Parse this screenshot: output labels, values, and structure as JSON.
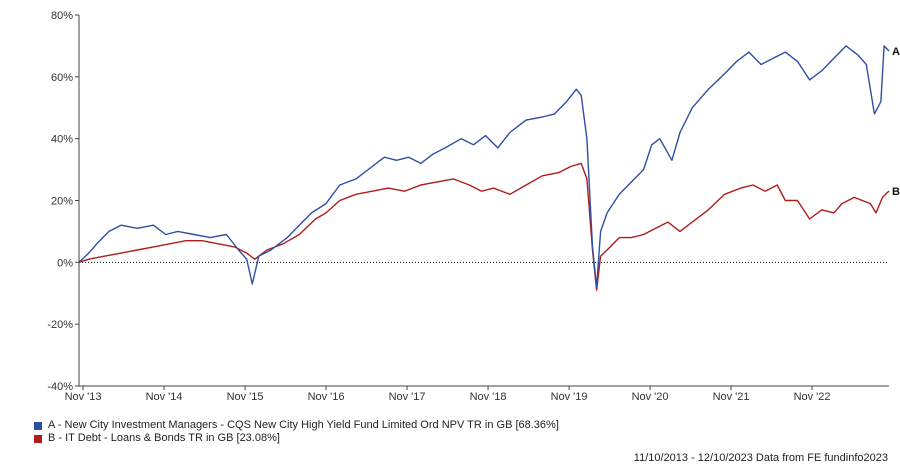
{
  "chart_data": {
    "type": "line",
    "ylim": [
      -40,
      80
    ],
    "yticks": [
      80,
      60,
      40,
      20,
      0,
      -20,
      -40
    ],
    "ytick_labels": [
      "80%",
      "60%",
      "40%",
      "20%",
      "0%",
      "-20%",
      "-40%"
    ],
    "xticks": [
      {
        "x": 2013.83,
        "label": "Nov '13"
      },
      {
        "x": 2014.83,
        "label": "Nov '14"
      },
      {
        "x": 2015.83,
        "label": "Nov '15"
      },
      {
        "x": 2016.83,
        "label": "Nov '16"
      },
      {
        "x": 2017.83,
        "label": "Nov '17"
      },
      {
        "x": 2018.83,
        "label": "Nov '18"
      },
      {
        "x": 2019.83,
        "label": "Nov '19"
      },
      {
        "x": 2020.83,
        "label": "Nov '20"
      },
      {
        "x": 2021.83,
        "label": "Nov '21"
      },
      {
        "x": 2022.83,
        "label": "Nov '22"
      }
    ],
    "xlim": [
      2013.78,
      2023.78
    ],
    "grid": false,
    "zero_line": "dotted",
    "legend_position": "bottom-left",
    "series": [
      {
        "name": "A - New City Investment Managers - CQS New City High Yield Fund Limited Ord NPV TR in GB [68.36%]",
        "end_label": "A",
        "color": "#2e4fa3",
        "points": [
          [
            2013.78,
            0
          ],
          [
            2013.9,
            3
          ],
          [
            2014.0,
            6
          ],
          [
            2014.15,
            10
          ],
          [
            2014.3,
            12
          ],
          [
            2014.5,
            11
          ],
          [
            2014.7,
            12
          ],
          [
            2014.85,
            9
          ],
          [
            2015.0,
            10
          ],
          [
            2015.2,
            9
          ],
          [
            2015.4,
            8
          ],
          [
            2015.6,
            9
          ],
          [
            2015.75,
            4
          ],
          [
            2015.85,
            1
          ],
          [
            2015.92,
            -7
          ],
          [
            2016.0,
            2
          ],
          [
            2016.15,
            4
          ],
          [
            2016.35,
            8
          ],
          [
            2016.5,
            12
          ],
          [
            2016.65,
            16
          ],
          [
            2016.83,
            19
          ],
          [
            2017.0,
            25
          ],
          [
            2017.2,
            27
          ],
          [
            2017.4,
            31
          ],
          [
            2017.55,
            34
          ],
          [
            2017.7,
            33
          ],
          [
            2017.85,
            34
          ],
          [
            2018.0,
            32
          ],
          [
            2018.15,
            35
          ],
          [
            2018.3,
            37
          ],
          [
            2018.5,
            40
          ],
          [
            2018.65,
            38
          ],
          [
            2018.8,
            41
          ],
          [
            2018.95,
            37
          ],
          [
            2019.1,
            42
          ],
          [
            2019.3,
            46
          ],
          [
            2019.5,
            47
          ],
          [
            2019.65,
            48
          ],
          [
            2019.8,
            52
          ],
          [
            2019.92,
            56
          ],
          [
            2019.98,
            54
          ],
          [
            2020.05,
            40
          ],
          [
            2020.12,
            5
          ],
          [
            2020.17,
            -8
          ],
          [
            2020.22,
            10
          ],
          [
            2020.3,
            16
          ],
          [
            2020.45,
            22
          ],
          [
            2020.6,
            26
          ],
          [
            2020.75,
            30
          ],
          [
            2020.85,
            38
          ],
          [
            2020.95,
            40
          ],
          [
            2021.1,
            33
          ],
          [
            2021.2,
            42
          ],
          [
            2021.35,
            50
          ],
          [
            2021.55,
            56
          ],
          [
            2021.75,
            61
          ],
          [
            2021.9,
            65
          ],
          [
            2022.05,
            68
          ],
          [
            2022.2,
            64
          ],
          [
            2022.35,
            66
          ],
          [
            2022.5,
            68
          ],
          [
            2022.65,
            65
          ],
          [
            2022.8,
            59
          ],
          [
            2022.95,
            62
          ],
          [
            2023.1,
            66
          ],
          [
            2023.25,
            70
          ],
          [
            2023.4,
            67
          ],
          [
            2023.5,
            64
          ],
          [
            2023.6,
            48
          ],
          [
            2023.68,
            52
          ],
          [
            2023.72,
            70
          ],
          [
            2023.78,
            68.36
          ]
        ]
      },
      {
        "name": "B - IT Debt - Loans & Bonds TR in GB [23.08%]",
        "end_label": "B",
        "color": "#b01c1c",
        "points": [
          [
            2013.78,
            0
          ],
          [
            2013.9,
            1
          ],
          [
            2014.1,
            2
          ],
          [
            2014.3,
            3
          ],
          [
            2014.5,
            4
          ],
          [
            2014.7,
            5
          ],
          [
            2014.9,
            6
          ],
          [
            2015.1,
            7
          ],
          [
            2015.3,
            7
          ],
          [
            2015.5,
            6
          ],
          [
            2015.7,
            5
          ],
          [
            2015.85,
            3
          ],
          [
            2015.95,
            1
          ],
          [
            2016.1,
            4
          ],
          [
            2016.3,
            6
          ],
          [
            2016.5,
            9
          ],
          [
            2016.7,
            14
          ],
          [
            2016.83,
            16
          ],
          [
            2017.0,
            20
          ],
          [
            2017.2,
            22
          ],
          [
            2017.4,
            23
          ],
          [
            2017.6,
            24
          ],
          [
            2017.8,
            23
          ],
          [
            2018.0,
            25
          ],
          [
            2018.2,
            26
          ],
          [
            2018.4,
            27
          ],
          [
            2018.6,
            25
          ],
          [
            2018.75,
            23
          ],
          [
            2018.9,
            24
          ],
          [
            2019.1,
            22
          ],
          [
            2019.3,
            25
          ],
          [
            2019.5,
            28
          ],
          [
            2019.7,
            29
          ],
          [
            2019.85,
            31
          ],
          [
            2019.98,
            32
          ],
          [
            2020.05,
            27
          ],
          [
            2020.12,
            4
          ],
          [
            2020.17,
            -9
          ],
          [
            2020.22,
            2
          ],
          [
            2020.3,
            4
          ],
          [
            2020.45,
            8
          ],
          [
            2020.6,
            8
          ],
          [
            2020.75,
            9
          ],
          [
            2020.9,
            11
          ],
          [
            2021.05,
            13
          ],
          [
            2021.2,
            10
          ],
          [
            2021.35,
            13
          ],
          [
            2021.55,
            17
          ],
          [
            2021.75,
            22
          ],
          [
            2021.95,
            24
          ],
          [
            2022.1,
            25
          ],
          [
            2022.25,
            23
          ],
          [
            2022.4,
            25
          ],
          [
            2022.5,
            20
          ],
          [
            2022.65,
            20
          ],
          [
            2022.8,
            14
          ],
          [
            2022.95,
            17
          ],
          [
            2023.1,
            16
          ],
          [
            2023.2,
            19
          ],
          [
            2023.35,
            21
          ],
          [
            2023.45,
            20
          ],
          [
            2023.55,
            19
          ],
          [
            2023.62,
            16
          ],
          [
            2023.7,
            21
          ],
          [
            2023.78,
            23.08
          ]
        ]
      }
    ],
    "footer": "11/10/2013 - 12/10/2023 Data from FE fundinfo2023"
  }
}
